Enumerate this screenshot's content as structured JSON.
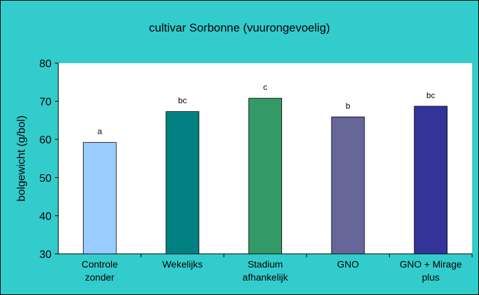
{
  "chart_data": {
    "type": "bar",
    "title": "cultivar Sorbonne (vuurongevoelig)",
    "ylabel": "bolgewicht (g/bol)",
    "categories": [
      "Controle\nzonder",
      "Wekelijks",
      "Stadium\nafhankelijk",
      "GNO",
      "GNO + Mirage\nplus"
    ],
    "values": [
      59.2,
      67.3,
      70.8,
      65.9,
      68.7
    ],
    "annotations": [
      "a",
      "bc",
      "c",
      "b",
      "bc"
    ],
    "colors": [
      "#99ccff",
      "#008080",
      "#339966",
      "#666699",
      "#333399"
    ],
    "ylim": [
      30,
      80
    ],
    "yticks": [
      30,
      40,
      50,
      60,
      70,
      80
    ],
    "grid": false
  }
}
